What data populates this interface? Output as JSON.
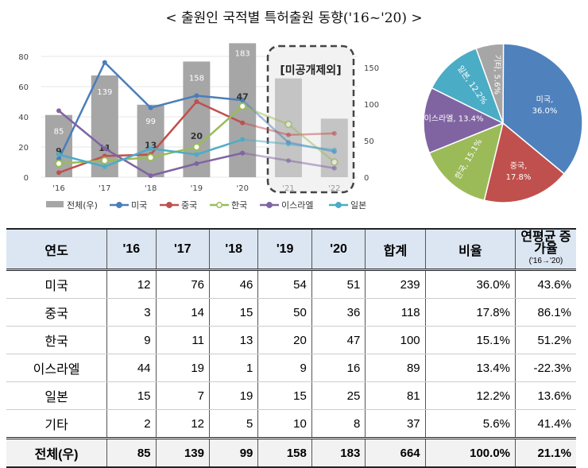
{
  "title": "< 출원인 국적별 특허출원 동향('16~'20) >",
  "chart_data": [
    {
      "type": "bar+line",
      "categories": [
        "'16",
        "'17",
        "'18",
        "'19",
        "'20",
        "'21",
        "'22"
      ],
      "annotation": "[미공개제외]",
      "ylim_left": [
        0,
        80
      ],
      "yticks_left": [
        0,
        20,
        40,
        60,
        80
      ],
      "ylim_right": [
        0,
        165
      ],
      "yticks_right": [
        0,
        50,
        100,
        150
      ],
      "grid": true,
      "legend": "bottom",
      "bar_series": {
        "name": "전체(우)",
        "values": [
          85,
          139,
          99,
          158,
          183,
          135,
          80
        ],
        "labels": [
          "85",
          "139",
          "99",
          "158",
          "183",
          "",
          ""
        ],
        "color": "#a6a6a6"
      },
      "series": [
        {
          "name": "미국",
          "values": [
            12,
            76,
            46,
            54,
            51,
            23,
            17
          ],
          "color": "#4a7ebb"
        },
        {
          "name": "중국",
          "values": [
            3,
            14,
            15,
            50,
            36,
            28,
            29
          ],
          "color": "#c0504d"
        },
        {
          "name": "한국",
          "values": [
            9,
            11,
            13,
            20,
            47,
            35,
            10
          ],
          "color": "#9bbb59",
          "labels": [
            "9",
            "11",
            "13",
            "20",
            "47",
            "",
            ""
          ]
        },
        {
          "name": "이스라엘",
          "values": [
            44,
            19,
            1,
            9,
            16,
            11,
            6
          ],
          "color": "#8064a2"
        },
        {
          "name": "일본",
          "values": [
            15,
            7,
            19,
            15,
            25,
            22,
            18
          ],
          "color": "#4bacc6"
        }
      ]
    },
    {
      "type": "pie",
      "slices": [
        {
          "label": "미국",
          "value": 36.0,
          "text": "36.0%",
          "color": "#4f81bd"
        },
        {
          "label": "중국",
          "value": 17.8,
          "text": "17.8%",
          "color": "#c0504d"
        },
        {
          "label": "한국",
          "value": 15.1,
          "text": "15.1%",
          "color": "#9bbb59"
        },
        {
          "label": "이스라엘",
          "value": 13.4,
          "text": "13.4%",
          "color": "#8064a2"
        },
        {
          "label": "일본",
          "value": 12.2,
          "text": "12.2%",
          "color": "#4bacc6"
        },
        {
          "label": "기타",
          "value": 5.6,
          "text": "5.6%",
          "color": "#a6a6a6"
        }
      ]
    }
  ],
  "table": {
    "headers": [
      "연도",
      "'16",
      "'17",
      "'18",
      "'19",
      "'20",
      "합계",
      "비율",
      "연평균 증가율"
    ],
    "header_sub": "('16→'20)",
    "rows": [
      [
        "미국",
        "12",
        "76",
        "46",
        "54",
        "51",
        "239",
        "36.0%",
        "43.6%"
      ],
      [
        "중국",
        "3",
        "14",
        "15",
        "50",
        "36",
        "118",
        "17.8%",
        "86.1%"
      ],
      [
        "한국",
        "9",
        "11",
        "13",
        "20",
        "47",
        "100",
        "15.1%",
        "51.2%"
      ],
      [
        "이스라엘",
        "44",
        "19",
        "1",
        "9",
        "16",
        "89",
        "13.4%",
        "-22.3%"
      ],
      [
        "일본",
        "15",
        "7",
        "19",
        "15",
        "25",
        "81",
        "12.2%",
        "13.6%"
      ],
      [
        "기타",
        "2",
        "12",
        "5",
        "10",
        "8",
        "37",
        "5.6%",
        "41.4%"
      ]
    ],
    "total": [
      "전체(우)",
      "85",
      "139",
      "99",
      "158",
      "183",
      "664",
      "100.0%",
      "21.1%"
    ]
  }
}
